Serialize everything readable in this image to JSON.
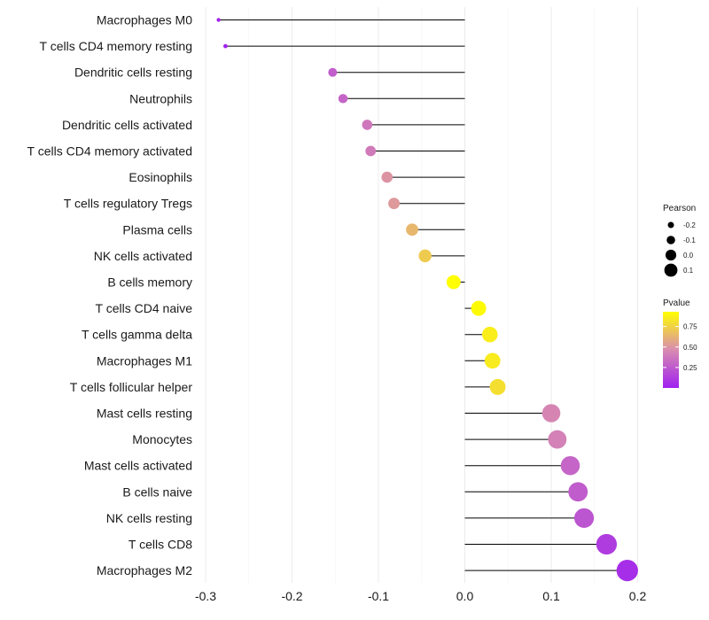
{
  "chart_data": {
    "type": "lollipop",
    "title": "",
    "xlabel": "",
    "ylabel": "",
    "xlim": [
      -0.3,
      0.2
    ],
    "xticks": [
      -0.3,
      -0.2,
      -0.1,
      0.0,
      0.1,
      0.2
    ],
    "xtick_labels": [
      "-0.3",
      "-0.2",
      "-0.1",
      "0.0",
      "0.1",
      "0.2"
    ],
    "grid": "vertical",
    "categories": [
      "Macrophages M0",
      "T cells CD4 memory resting",
      "Dendritic cells resting",
      "Neutrophils",
      "Dendritic cells activated",
      "T cells CD4 memory activated",
      "Eosinophils",
      "T cells regulatory  Tregs",
      "Plasma cells",
      "NK cells activated",
      "B cells memory",
      "T cells CD4 naive",
      "T cells gamma delta",
      "Macrophages M1",
      "T cells follicular helper",
      "Mast cells resting",
      "Monocytes",
      "Mast cells activated",
      "B cells naive",
      "NK cells resting",
      "T cells CD8",
      "Macrophages M2"
    ],
    "values": [
      -0.285,
      -0.277,
      -0.153,
      -0.141,
      -0.113,
      -0.109,
      -0.09,
      -0.082,
      -0.061,
      -0.046,
      -0.013,
      0.016,
      0.029,
      0.032,
      0.038,
      0.1,
      0.107,
      0.122,
      0.131,
      0.138,
      0.164,
      0.188
    ],
    "pvalues": [
      0.01,
      0.01,
      0.27,
      0.3,
      0.38,
      0.39,
      0.5,
      0.52,
      0.64,
      0.72,
      0.93,
      0.91,
      0.86,
      0.85,
      0.8,
      0.44,
      0.42,
      0.3,
      0.26,
      0.23,
      0.12,
      0.06
    ],
    "legend_size": {
      "title": "Pearson",
      "entries": [
        "-0.2",
        "-0.1",
        "0.0",
        "0.1"
      ],
      "values": [
        -0.2,
        -0.1,
        0.0,
        0.1
      ]
    },
    "legend_color": {
      "title": "Pvalue",
      "ticks": [
        "0.25",
        "0.50",
        "0.75"
      ],
      "tick_values": [
        0.25,
        0.5,
        0.75
      ],
      "range": [
        0.0,
        0.93
      ],
      "low_color": "#a020f0",
      "mid_color": "#d98bb0",
      "high_color": "#ffff00"
    },
    "legend_position": "right"
  }
}
